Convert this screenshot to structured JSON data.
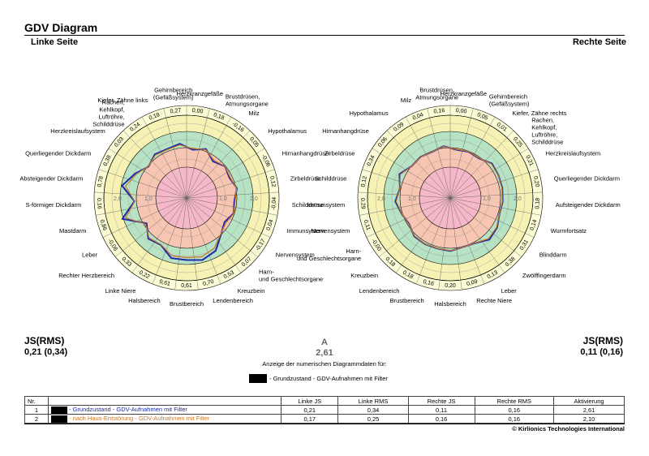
{
  "title": "GDV Diagram",
  "left_heading": "Linke Seite",
  "right_heading": "Rechte Seite",
  "stats": {
    "left_label": "JS(RMS)",
    "left_value": "0,21 (0,34)",
    "right_label": "JS(RMS)",
    "right_value": "0,11 (0,16)",
    "a_label": "A",
    "a_value": "2,61"
  },
  "caption": "Anzeige der numerischen Diagrammdaten für:",
  "legend_text": "- Grundzustand - GDV-Aufnahmen mit Filter",
  "table": {
    "headers": [
      "Nr.",
      "",
      "Linke JS",
      "Linke RMS",
      "Rechte JS",
      "Rechte RMS",
      "Aktivierung"
    ],
    "rows": [
      {
        "nr": "1",
        "name": "- Grundzustand - GDV-Aufnahmen mit Filter",
        "color": "#1a2aa8",
        "lj": "0,21",
        "lr": "0,34",
        "rj": "0,11",
        "rr": "0,16",
        "akt": "2,61"
      },
      {
        "nr": "2",
        "name": "- nach Haus-Entstörung - GDV-Aufnahmen mit Filter",
        "color": "#c8782a",
        "lj": "0,17",
        "lr": "0,25",
        "rj": "0,16",
        "rr": "0,16",
        "akt": "2,10"
      }
    ]
  },
  "copyright": "© Kirlionics Technologies International",
  "colors": {
    "series1": "#1a2aa8",
    "series2": "#c8782a",
    "zone_center": "#f5b8c8",
    "zone_inner": "#f7c6b2",
    "zone_mid": "#b8e2c4",
    "zone_outer": "#f6f2b4",
    "zone_edge": "#fbfbd6"
  },
  "chart_data": [
    {
      "type": "radar",
      "title": "Linke Seite",
      "ring_labels": [
        "2,0",
        "1,0",
        "0",
        "1,0",
        "2,0"
      ],
      "sectors": [
        {
          "label": "Herzkranzgefäße",
          "value": "0,00"
        },
        {
          "label": "Brustdrüsen, Atmungsorgane",
          "value": "0,18"
        },
        {
          "label": "Milz",
          "value": "-0,16"
        },
        {
          "label": "Hypothalamus",
          "value": "0,05"
        },
        {
          "label": "Hirnanhangdrüse",
          "value": "-0,06"
        },
        {
          "label": "Zirbeldrüse",
          "value": "0,12"
        },
        {
          "label": "Schilddrüse",
          "value": "-0,04"
        },
        {
          "label": "Immunsystem",
          "value": "0,04"
        },
        {
          "label": "Nervensystem",
          "value": "-0,17"
        },
        {
          "label": "Harn- und Geschlechtsorgane",
          "value": "0,07"
        },
        {
          "label": "Kreuzbein",
          "value": "0,53"
        },
        {
          "label": "Lendenbereich",
          "value": "0,70"
        },
        {
          "label": "Brustbereich",
          "value": "0,61"
        },
        {
          "label": "Halsbereich",
          "value": "0,61"
        },
        {
          "label": "Linke Niere",
          "value": "0,22"
        },
        {
          "label": "Rechter Herzbereich",
          "value": "0,33"
        },
        {
          "label": "Leber",
          "value": "-0,06"
        },
        {
          "label": "Mastdarm",
          "value": "0,86"
        },
        {
          "label": "S-förmiger Dickdarm",
          "value": "0,16"
        },
        {
          "label": "Absteigender Dickdarm",
          "value": "0,78"
        },
        {
          "label": "Querliegender Dickdarm",
          "value": "0,38"
        },
        {
          "label": "Herzkreislaufsystem",
          "value": "0,03"
        },
        {
          "label": "Rachen, Kehlkopf, Luftröhre, Schilddrüse",
          "value": "0,24"
        },
        {
          "label": "Kiefer, Zähne links",
          "value": "0,18"
        },
        {
          "label": "Gehirnbereich (Gefäßsystem)",
          "value": "0,27"
        }
      ],
      "series": [
        {
          "name": "Grundzustand - GDV-Aufnahmen mit Filter",
          "color": "#1a2aa8",
          "values": [
            0.0,
            0.18,
            -0.16,
            0.05,
            -0.06,
            0.12,
            -0.04,
            0.04,
            -0.17,
            0.07,
            0.53,
            0.7,
            0.61,
            0.61,
            0.22,
            0.33,
            -0.06,
            0.86,
            0.16,
            0.78,
            0.38,
            0.03,
            0.24,
            0.18,
            0.27
          ]
        },
        {
          "name": "nach Haus-Entstörung - GDV-Aufnahmen mit Filter",
          "color": "#c8782a",
          "values": [
            0.05,
            0.15,
            -0.1,
            0.05,
            -0.02,
            0.1,
            0.0,
            0.05,
            -0.1,
            0.05,
            0.4,
            0.55,
            0.5,
            0.5,
            0.2,
            0.28,
            0.0,
            0.7,
            0.15,
            0.62,
            0.32,
            0.05,
            0.2,
            0.15,
            0.22
          ]
        }
      ],
      "rlim": [
        -2,
        2
      ]
    },
    {
      "type": "radar",
      "title": "Rechte Seite",
      "ring_labels": [
        "2,0",
        "1,0",
        "0",
        "1,0",
        "2,0"
      ],
      "sectors": [
        {
          "label": "Herzkranzgefäße",
          "value": "0,00"
        },
        {
          "label": "Gehirnbereich (Gefäßsystem)",
          "value": "0,05"
        },
        {
          "label": "Kiefer, Zähne rechts",
          "value": "0,01"
        },
        {
          "label": "Rachen, Kehlkopf, Luftröhre, Schilddrüse",
          "value": "0,25"
        },
        {
          "label": "Herzkreislaufsystem",
          "value": "0,21"
        },
        {
          "label": "Querliegender Dickdarm",
          "value": "0,20"
        },
        {
          "label": "Aufsteigender Dickdarm",
          "value": "0,18"
        },
        {
          "label": "Wurmfortsatz",
          "value": "0,14"
        },
        {
          "label": "Blinddarm",
          "value": "0,31"
        },
        {
          "label": "Zwölffingerdarm",
          "value": "0,38"
        },
        {
          "label": "Leber",
          "value": "0,13"
        },
        {
          "label": "Rechte Niere",
          "value": "0,09"
        },
        {
          "label": "Halsbereich",
          "value": "0,20"
        },
        {
          "label": "Brustbereich",
          "value": "0,16"
        },
        {
          "label": "Lendenbereich",
          "value": "0,18"
        },
        {
          "label": "Kreuzbein",
          "value": "0,18"
        },
        {
          "label": "Harn- und Geschlechtsorgane",
          "value": "-0,00"
        },
        {
          "label": "Nervensystem",
          "value": "0,11"
        },
        {
          "label": "Immunsystem",
          "value": "0,29"
        },
        {
          "label": "Schilddrüse",
          "value": "0,12"
        },
        {
          "label": "Zirbeldrüse",
          "value": "0,34"
        },
        {
          "label": "Hirnanhangdrüse",
          "value": "0,06"
        },
        {
          "label": "Hypothalamus",
          "value": "0,09"
        },
        {
          "label": "Milz",
          "value": "0,04"
        },
        {
          "label": "Brustdrüsen, Atmungsorgane",
          "value": "0,16"
        }
      ],
      "series": [
        {
          "name": "Grundzustand - GDV-Aufnahmen mit Filter",
          "color": "#1a2aa8",
          "values": [
            0.0,
            0.05,
            0.01,
            0.25,
            0.21,
            0.2,
            0.18,
            0.14,
            0.31,
            0.38,
            0.13,
            0.09,
            0.2,
            0.16,
            0.18,
            0.18,
            0.0,
            0.11,
            0.29,
            0.12,
            0.34,
            0.06,
            0.09,
            0.04,
            0.16
          ]
        },
        {
          "name": "nach Haus-Entstörung - GDV-Aufnahmen mit Filter",
          "color": "#c8782a",
          "values": [
            0.02,
            0.06,
            0.03,
            0.22,
            0.2,
            0.18,
            0.16,
            0.14,
            0.28,
            0.33,
            0.12,
            0.1,
            0.18,
            0.15,
            0.17,
            0.16,
            0.02,
            0.1,
            0.25,
            0.12,
            0.3,
            0.06,
            0.08,
            0.05,
            0.15
          ]
        }
      ],
      "rlim": [
        -2,
        2
      ]
    }
  ]
}
